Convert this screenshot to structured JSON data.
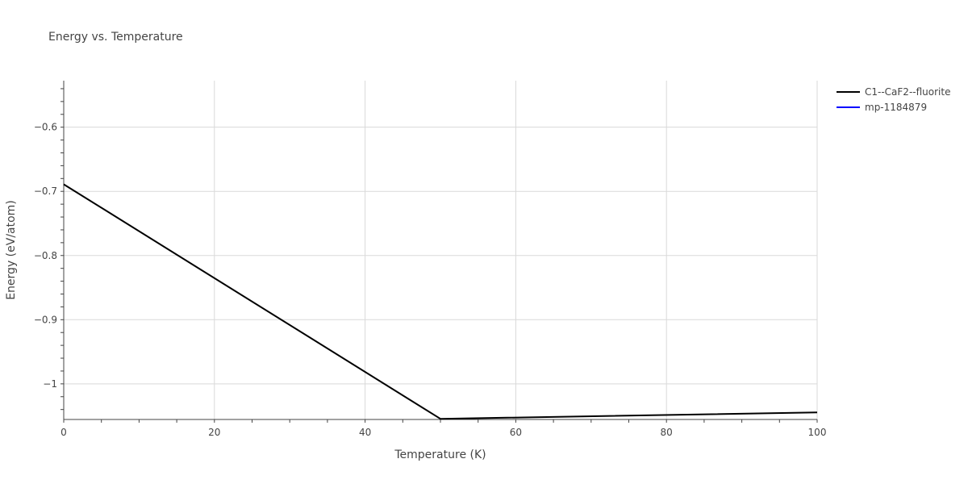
{
  "chart_data": {
    "type": "line",
    "title": "Energy vs. Temperature",
    "xlabel": "Temperature (K)",
    "ylabel": "Energy (eV/atom)",
    "xlim": [
      0,
      100
    ],
    "ylim": [
      -1.0555,
      -0.5275
    ],
    "x_ticks": [
      0,
      20,
      40,
      60,
      80,
      100
    ],
    "x_tick_labels": [
      "0",
      "20",
      "40",
      "60",
      "80",
      "100"
    ],
    "y_ticks": [
      -0.6,
      -0.7,
      -0.8,
      -0.9,
      -1
    ],
    "y_tick_labels": [
      "−0.6",
      "−0.7",
      "−0.8",
      "−0.9",
      "−1"
    ],
    "grid": true,
    "legend_position": "top-right",
    "series": [
      {
        "name": "C1--CaF2--fluorite",
        "color": "#000000",
        "x": [
          0,
          50,
          100
        ],
        "y": [
          -0.689,
          -1.0545,
          -1.0445
        ]
      },
      {
        "name": "mp-1184879",
        "color": "#0000ff",
        "x": [],
        "y": []
      }
    ]
  }
}
